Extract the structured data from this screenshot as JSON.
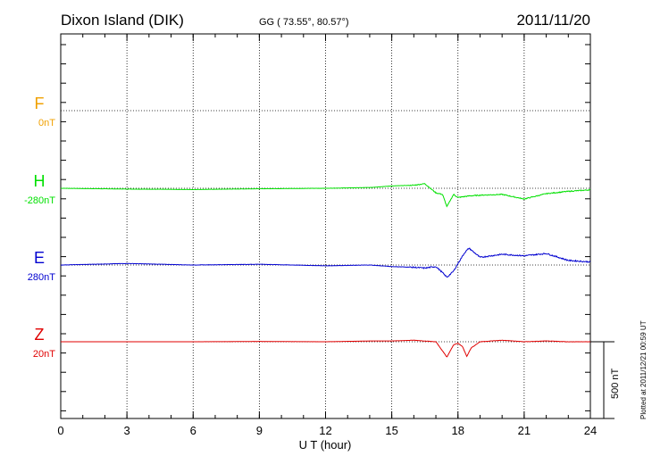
{
  "header": {
    "station": "Dixon Island (DIK)",
    "coords": "GG ( 73.55°,  80.57°)",
    "date": "2011/11/20"
  },
  "footer_note": "Plotted at 2011/12/21 00:59 UT",
  "scale_label": "500 nT",
  "colors": {
    "F": "#f0a000",
    "H": "#00e000",
    "E": "#0000d0",
    "Z": "#e00000",
    "axis": "#000000",
    "grid": "#000000"
  },
  "chart_data": {
    "type": "line",
    "title": "Dixon Island (DIK)",
    "xlabel": "U T (hour)",
    "ylabel": "",
    "xlim": [
      0,
      24
    ],
    "x_ticks": [
      "0",
      "3",
      "6",
      "9",
      "12",
      "15",
      "18",
      "21",
      "24"
    ],
    "grid": true,
    "scale_bar_nT": 500,
    "channels": [
      {
        "name": "F",
        "baseline_label": "0nT"
      },
      {
        "name": "H",
        "baseline_label": "-280nT"
      },
      {
        "name": "E",
        "baseline_label": "280nT"
      },
      {
        "name": "Z",
        "baseline_label": "20nT"
      }
    ],
    "series": [
      {
        "name": "H",
        "x": [
          0,
          3,
          6,
          9,
          12,
          14,
          15,
          16,
          16.5,
          17,
          17.3,
          17.5,
          17.8,
          18,
          18.5,
          19,
          20,
          21,
          22,
          23,
          24
        ],
        "y": [
          0,
          -5,
          -8,
          -3,
          0,
          5,
          15,
          20,
          30,
          -30,
          -40,
          -120,
          -40,
          -60,
          -50,
          -45,
          -40,
          -70,
          -35,
          -20,
          -10
        ]
      },
      {
        "name": "E",
        "x": [
          0,
          3,
          6,
          9,
          12,
          14,
          15,
          16,
          16.5,
          17,
          17.3,
          17.5,
          17.8,
          18,
          18.3,
          18.5,
          19,
          20,
          21,
          22,
          23,
          24
        ],
        "y": [
          0,
          10,
          0,
          5,
          -5,
          0,
          -10,
          -15,
          -20,
          -10,
          -50,
          -80,
          -40,
          10,
          80,
          110,
          50,
          70,
          60,
          75,
          30,
          20
        ]
      },
      {
        "name": "Z",
        "x": [
          0,
          3,
          6,
          9,
          12,
          14,
          15,
          16,
          17,
          17.2,
          17.5,
          17.8,
          18,
          18.2,
          18.4,
          18.6,
          19,
          20,
          21,
          22,
          23,
          24
        ],
        "y": [
          0,
          0,
          0,
          2,
          0,
          5,
          5,
          10,
          0,
          -40,
          -100,
          -20,
          -10,
          -30,
          -95,
          -40,
          0,
          10,
          0,
          5,
          0,
          0
        ]
      }
    ]
  }
}
